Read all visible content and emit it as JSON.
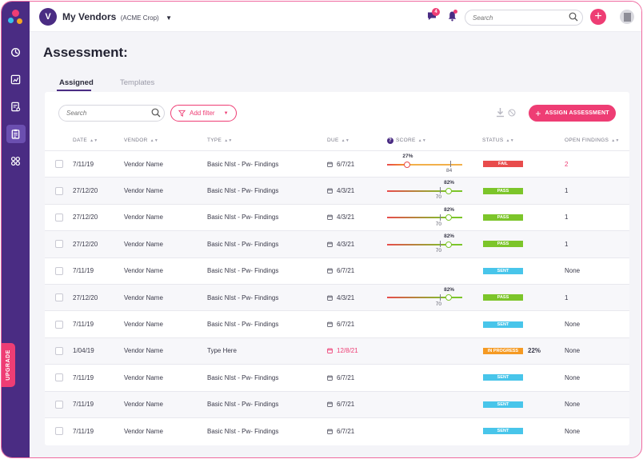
{
  "colors": {
    "accent": "#ee3d74",
    "brand": "#4a2c83",
    "fail": "#e84c4c",
    "pass": "#7cc52a",
    "sent": "#48c5ea",
    "progress": "#f59a23"
  },
  "sidebar": {
    "items": [
      "dashboard-icon",
      "chart-icon",
      "report-icon",
      "clipboard-icon",
      "apps-icon"
    ],
    "upgrade_label": "UPGRADE"
  },
  "header": {
    "vendor_initial": "V",
    "vendor_name": "My Vendors",
    "vendor_org": "(ACME Crop)",
    "chat_count": "4",
    "search_placeholder": "Search"
  },
  "page": {
    "title": "Assessment:"
  },
  "tabs": [
    {
      "label": "Assigned"
    },
    {
      "label": "Templates"
    }
  ],
  "toolbar": {
    "search_placeholder": "Search",
    "filter_label": "Add filter",
    "assign_label": "ASSIGN ASSESSMENT"
  },
  "table": {
    "headers": {
      "date": "DATE",
      "vendor": "VENDOR",
      "type": "TYPE",
      "due": "DUE",
      "score": "SCORE",
      "status": "STATUS",
      "findings": "OPEN FINDINGS"
    },
    "rows": [
      {
        "date": "7/11/19",
        "vendor": "Vendor Name",
        "type": "Basic NIst - Pw- Findings",
        "due": "6/7/21",
        "overdue": false,
        "score": 27,
        "benchmark": 84,
        "status": "FAIL",
        "status_kind": "fail",
        "pct": "",
        "findings": "2",
        "findings_alert": true
      },
      {
        "date": "27/12/20",
        "vendor": "Vendor Name",
        "type": "Basic NIst - Pw- Findings",
        "due": "4/3/21",
        "overdue": false,
        "score": 82,
        "benchmark": 70,
        "status": "PASS",
        "status_kind": "pass",
        "pct": "",
        "findings": "1",
        "findings_alert": false
      },
      {
        "date": "27/12/20",
        "vendor": "Vendor Name",
        "type": "Basic NIst - Pw- Findings",
        "due": "4/3/21",
        "overdue": false,
        "score": 82,
        "benchmark": 70,
        "status": "PASS",
        "status_kind": "pass",
        "pct": "",
        "findings": "1",
        "findings_alert": false
      },
      {
        "date": "27/12/20",
        "vendor": "Vendor Name",
        "type": "Basic NIst - Pw- Findings",
        "due": "4/3/21",
        "overdue": false,
        "score": 82,
        "benchmark": 70,
        "status": "PASS",
        "status_kind": "pass",
        "pct": "",
        "findings": "1",
        "findings_alert": false
      },
      {
        "date": "7/11/19",
        "vendor": "Vendor Name",
        "type": "Basic NIst - Pw- Findings",
        "due": "6/7/21",
        "overdue": false,
        "score": null,
        "benchmark": null,
        "status": "SENT",
        "status_kind": "sent",
        "pct": "",
        "findings": "None",
        "findings_alert": false
      },
      {
        "date": "27/12/20",
        "vendor": "Vendor Name",
        "type": "Basic NIst - Pw- Findings",
        "due": "4/3/21",
        "overdue": false,
        "score": 82,
        "benchmark": 70,
        "status": "PASS",
        "status_kind": "pass",
        "pct": "",
        "findings": "1",
        "findings_alert": false
      },
      {
        "date": "7/11/19",
        "vendor": "Vendor Name",
        "type": "Basic NIst - Pw- Findings",
        "due": "6/7/21",
        "overdue": false,
        "score": null,
        "benchmark": null,
        "status": "SENT",
        "status_kind": "sent",
        "pct": "",
        "findings": "None",
        "findings_alert": false
      },
      {
        "date": "1/04/19",
        "vendor": "Vendor Name",
        "type": "Type Here",
        "due": "12/8/21",
        "overdue": true,
        "score": null,
        "benchmark": null,
        "status": "IN PROGRESS",
        "status_kind": "progress",
        "pct": "22%",
        "findings": "None",
        "findings_alert": false
      },
      {
        "date": "7/11/19",
        "vendor": "Vendor Name",
        "type": "Basic NIst - Pw- Findings",
        "due": "6/7/21",
        "overdue": false,
        "score": null,
        "benchmark": null,
        "status": "SENT",
        "status_kind": "sent",
        "pct": "",
        "findings": "None",
        "findings_alert": false
      },
      {
        "date": "7/11/19",
        "vendor": "Vendor Name",
        "type": "Basic NIst - Pw- Findings",
        "due": "6/7/21",
        "overdue": false,
        "score": null,
        "benchmark": null,
        "status": "SENT",
        "status_kind": "sent",
        "pct": "",
        "findings": "None",
        "findings_alert": false
      },
      {
        "date": "7/11/19",
        "vendor": "Vendor Name",
        "type": "Basic NIst - Pw- Findings",
        "due": "6/7/21",
        "overdue": false,
        "score": null,
        "benchmark": null,
        "status": "SENT",
        "status_kind": "sent",
        "pct": "",
        "findings": "None",
        "findings_alert": false
      }
    ]
  }
}
